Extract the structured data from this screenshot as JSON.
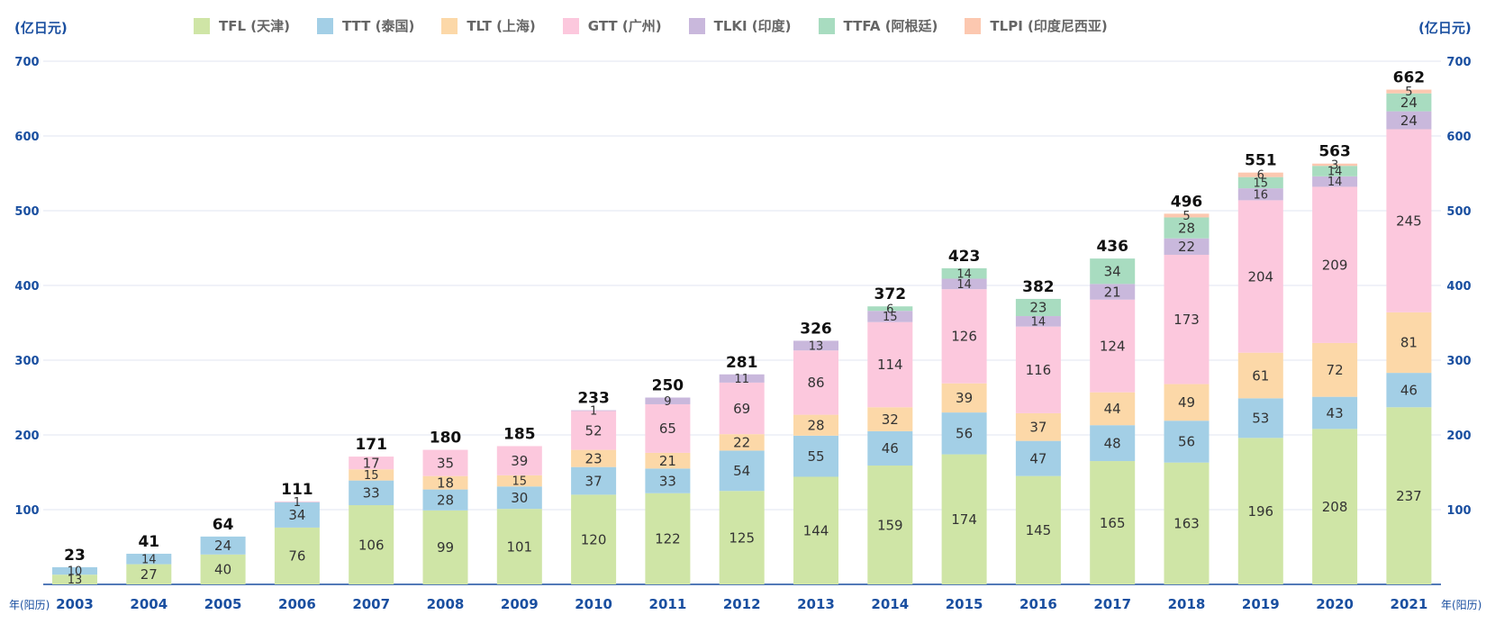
{
  "chart_data": {
    "type": "bar",
    "stacked": true,
    "y_unit_left": "(亿日元)",
    "y_unit_right": "(亿日元)",
    "x_unit_left": "年(阳历)",
    "x_unit_right": "年(阳历)",
    "ylim": [
      0,
      700
    ],
    "yticks": [
      100,
      200,
      300,
      400,
      500,
      600,
      700
    ],
    "grid": true,
    "legend_position": "top",
    "categories": [
      "2003",
      "2004",
      "2005",
      "2006",
      "2007",
      "2008",
      "2009",
      "2010",
      "2011",
      "2012",
      "2013",
      "2014",
      "2015",
      "2016",
      "2017",
      "2018",
      "2019",
      "2020",
      "2021"
    ],
    "totals": [
      23,
      41,
      64,
      111,
      171,
      180,
      185,
      233,
      250,
      281,
      326,
      372,
      423,
      382,
      436,
      496,
      551,
      563,
      662
    ],
    "series": [
      {
        "name": "TFL (天津)",
        "color": "#cfe5a6",
        "values": [
          13,
          27,
          40,
          76,
          106,
          99,
          101,
          120,
          122,
          125,
          144,
          159,
          174,
          145,
          165,
          163,
          196,
          208,
          237
        ]
      },
      {
        "name": "TTT (泰国)",
        "color": "#a3cfe6",
        "values": [
          10,
          14,
          24,
          34,
          33,
          28,
          30,
          37,
          33,
          54,
          55,
          46,
          56,
          47,
          48,
          56,
          53,
          43,
          46
        ]
      },
      {
        "name": "TLT (上海)",
        "color": "#fcd8a8",
        "values": [
          null,
          null,
          null,
          null,
          15,
          18,
          15,
          23,
          21,
          22,
          28,
          32,
          39,
          37,
          44,
          49,
          61,
          72,
          81
        ]
      },
      {
        "name": "GTT (广州)",
        "color": "#fcc8dd",
        "values": [
          null,
          null,
          null,
          1,
          17,
          35,
          39,
          52,
          65,
          69,
          86,
          114,
          126,
          116,
          124,
          173,
          204,
          209,
          245
        ]
      },
      {
        "name": "TLKI (印度)",
        "color": "#c9b8dc",
        "values": [
          null,
          null,
          null,
          null,
          null,
          null,
          null,
          1,
          9,
          11,
          13,
          15,
          14,
          14,
          21,
          22,
          16,
          14,
          24
        ]
      },
      {
        "name": "TTFA (阿根廷)",
        "color": "#a8dcc0",
        "values": [
          null,
          null,
          null,
          null,
          null,
          null,
          null,
          null,
          null,
          null,
          null,
          6,
          14,
          23,
          34,
          28,
          15,
          14,
          24
        ]
      },
      {
        "name": "TLPI (印度尼西亚)",
        "color": "#fcc8b0",
        "values": [
          null,
          null,
          null,
          null,
          null,
          null,
          null,
          null,
          null,
          null,
          null,
          null,
          null,
          null,
          null,
          5,
          6,
          3,
          5
        ]
      }
    ]
  }
}
